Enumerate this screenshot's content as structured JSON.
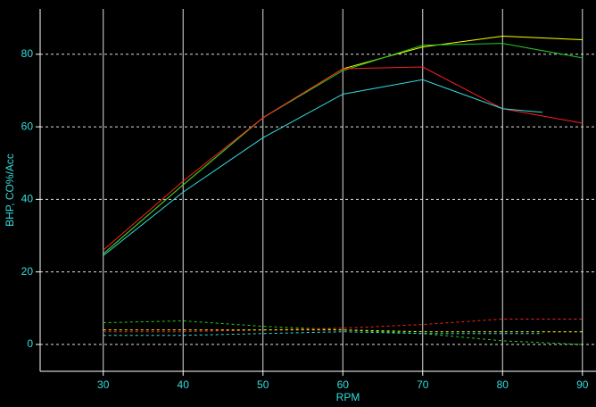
{
  "chart_data": {
    "type": "line",
    "x_label": "RPM",
    "y_label": "BHP, CO%/Acc",
    "xlim": [
      22.1,
      91.7
    ],
    "ylim": [
      -7.4,
      92.5
    ],
    "xticks": [
      30,
      40,
      50,
      60,
      70,
      80,
      90
    ],
    "yticks": [
      0,
      20,
      40,
      60,
      80
    ],
    "grid": true,
    "series": [
      {
        "color": "#ffff00",
        "dashed": false,
        "x": [
          30,
          40,
          50,
          60,
          70,
          80,
          90
        ],
        "values": [
          25,
          44,
          62.5,
          76,
          82,
          85,
          84
        ]
      },
      {
        "color": "#22cc22",
        "dashed": false,
        "x": [
          30,
          40,
          50,
          60,
          70,
          80,
          90
        ],
        "values": [
          25,
          44,
          62.5,
          75.5,
          82.5,
          83,
          79
        ]
      },
      {
        "color": "#ff2020",
        "dashed": false,
        "x": [
          30,
          40,
          50,
          60,
          70,
          80,
          90
        ],
        "values": [
          26,
          45,
          62.5,
          76,
          76.5,
          65,
          61
        ]
      },
      {
        "color": "#33dddd",
        "dashed": false,
        "x": [
          30,
          40,
          50,
          60,
          70,
          80,
          85
        ],
        "values": [
          24.5,
          42,
          57,
          69,
          73,
          65,
          64
        ]
      },
      {
        "color": "#22cc22",
        "dashed": true,
        "x": [
          30,
          40,
          50,
          60,
          70,
          80,
          90
        ],
        "values": [
          6,
          6.5,
          5,
          4,
          3,
          1,
          0
        ]
      },
      {
        "color": "#ff2020",
        "dashed": true,
        "x": [
          30,
          40,
          50,
          60,
          70,
          80,
          90
        ],
        "values": [
          3.5,
          3.5,
          4,
          4.5,
          5.5,
          7,
          7
        ]
      },
      {
        "color": "#ffff00",
        "dashed": true,
        "x": [
          30,
          40,
          50,
          60,
          70,
          80,
          90
        ],
        "values": [
          4,
          4,
          4,
          4,
          3.5,
          3.5,
          3.5
        ]
      },
      {
        "color": "#33dddd",
        "dashed": true,
        "x": [
          30,
          40,
          50,
          60,
          70,
          80,
          85
        ],
        "values": [
          2.5,
          2.5,
          3,
          3.5,
          3,
          3,
          3
        ]
      }
    ]
  }
}
